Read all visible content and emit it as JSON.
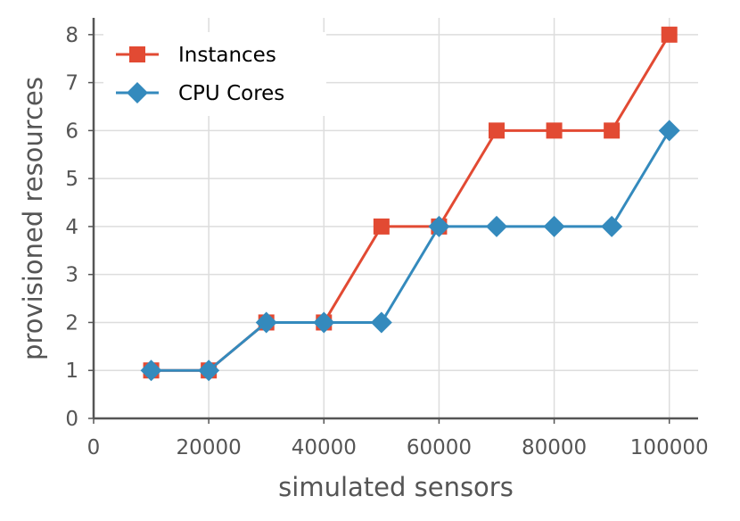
{
  "chart_data": {
    "type": "line",
    "title": "",
    "xlabel": "simulated sensors",
    "ylabel": "provisioned resources",
    "xlim": [
      0,
      105000
    ],
    "ylim": [
      0,
      8.35
    ],
    "x_ticks": [
      0,
      20000,
      40000,
      60000,
      80000,
      100000
    ],
    "x_tick_labels": [
      "0",
      "20000",
      "40000",
      "60000",
      "80000",
      "100000"
    ],
    "y_ticks": [
      0,
      1,
      2,
      3,
      4,
      5,
      6,
      7,
      8
    ],
    "y_tick_labels": [
      "0",
      "1",
      "2",
      "3",
      "4",
      "5",
      "6",
      "7",
      "8"
    ],
    "grid": true,
    "legend_position": "top-left",
    "x": [
      10000,
      20000,
      30000,
      40000,
      50000,
      60000,
      70000,
      80000,
      90000,
      100000
    ],
    "series": [
      {
        "name": "Instances",
        "marker": "square",
        "color": "#E24A33",
        "values": [
          1,
          1,
          2,
          2,
          4,
          4,
          6,
          6,
          6,
          8
        ]
      },
      {
        "name": "CPU Cores",
        "marker": "diamond",
        "color": "#348ABD",
        "values": [
          1,
          1,
          2,
          2,
          2,
          4,
          4,
          4,
          4,
          6
        ]
      }
    ]
  }
}
